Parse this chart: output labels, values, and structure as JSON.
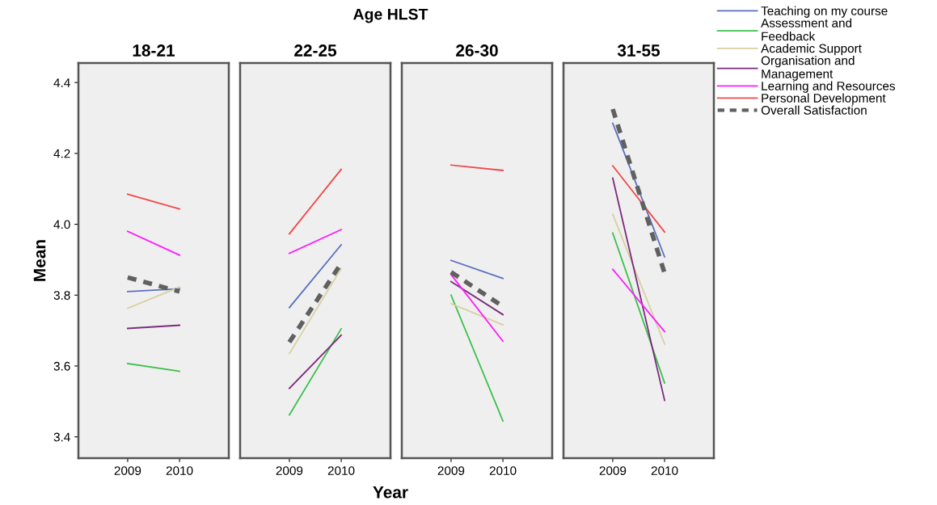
{
  "chart_data": [
    {
      "type": "line",
      "title": "18-21",
      "ylabel": "Mean",
      "categories": [
        "2009",
        "2010"
      ],
      "ylim": [
        3.34,
        4.455
      ],
      "yticks": [
        3.4,
        3.6,
        3.8,
        {
          "value": 4.0,
          "label": "4.0"
        },
        4.2,
        4.4
      ],
      "legend": "top right",
      "series": [
        {
          "name": "Teaching on my course",
          "color": "#5a6fc0",
          "values": [
            3.81,
            3.818
          ]
        },
        {
          "name": "Assessment and\nFeedback",
          "color": "#3cc04c",
          "values": [
            3.607,
            3.585
          ]
        },
        {
          "name": "Academic Support",
          "color": "#d8d0a0",
          "values": [
            3.763,
            3.823
          ]
        },
        {
          "name": "Organisation and\nManagement",
          "color": "#7c2a7c",
          "values": [
            3.706,
            3.715
          ]
        },
        {
          "name": "Learning and Resources",
          "color": "#ff1aff",
          "values": [
            3.98,
            3.913
          ]
        },
        {
          "name": "Personal Development",
          "color": "#f04848",
          "values": [
            4.085,
            4.043
          ]
        },
        {
          "name": "Overall Satisfaction",
          "color": "#606060",
          "line_style": "dashed",
          "values": [
            3.85,
            3.81
          ]
        }
      ]
    },
    {
      "type": "line",
      "title": "22-25",
      "annotations": [
        "Age HLST"
      ],
      "xlabel": "Year",
      "categories": [
        "2009",
        "2010"
      ],
      "ylim": [
        3.34,
        4.455
      ],
      "yticks": [
        3.4,
        3.6,
        3.8,
        4.0,
        4.2,
        4.4
      ],
      "tick_labels": "x",
      "series": [
        {
          "color": "#5a6fc0",
          "values": [
            3.765,
            3.942
          ]
        },
        {
          "color": "#3cc04c",
          "values": [
            3.462,
            3.705
          ]
        },
        {
          "color": "#d8d0a0",
          "values": [
            3.635,
            3.875
          ]
        },
        {
          "color": "#7c2a7c",
          "values": [
            3.537,
            3.687
          ]
        },
        {
          "color": "#ff1aff",
          "values": [
            3.918,
            3.985
          ]
        },
        {
          "color": "#f04848",
          "values": [
            3.973,
            4.155
          ]
        },
        {
          "color": "#606060",
          "line_style": "dashed",
          "values": [
            3.667,
            3.89
          ]
        }
      ]
    },
    {
      "type": "line",
      "title": "26-30",
      "categories": [
        "2009",
        "2010"
      ],
      "ylim": [
        3.34,
        4.455
      ],
      "yticks": [
        3.4,
        3.6,
        3.8,
        4.0,
        4.2,
        4.4
      ],
      "tick_labels": "x",
      "series": [
        {
          "color": "#5a6fc0",
          "values": [
            3.898,
            3.847
          ]
        },
        {
          "color": "#3cc04c",
          "values": [
            3.8,
            3.445
          ]
        },
        {
          "color": "#d8d0a0",
          "values": [
            3.776,
            3.716
          ]
        },
        {
          "color": "#7c2a7c",
          "values": [
            3.838,
            3.745
          ]
        },
        {
          "color": "#ff1aff",
          "values": [
            3.858,
            3.67
          ]
        },
        {
          "color": "#f04848",
          "values": [
            4.167,
            4.152
          ]
        },
        {
          "color": "#606060",
          "line_style": "dashed",
          "values": [
            3.865,
            3.768
          ]
        }
      ]
    },
    {
      "type": "line",
      "title": "31-55",
      "categories": [
        "2009",
        "2010"
      ],
      "ylim": [
        3.34,
        4.455
      ],
      "yticks": [
        3.4,
        3.6,
        3.8,
        4.0,
        4.2,
        4.4
      ],
      "tick_labels": "x",
      "series": [
        {
          "color": "#5a6fc0",
          "values": [
            4.285,
            3.908
          ]
        },
        {
          "color": "#3cc04c",
          "values": [
            3.975,
            3.552
          ]
        },
        {
          "color": "#d8d0a0",
          "values": [
            4.028,
            3.662
          ]
        },
        {
          "color": "#7c2a7c",
          "values": [
            4.13,
            3.503
          ]
        },
        {
          "color": "#ff1aff",
          "values": [
            3.873,
            3.697
          ]
        },
        {
          "color": "#f04848",
          "values": [
            4.165,
            3.978
          ]
        },
        {
          "color": "#606060",
          "line_style": "dashed",
          "values": [
            4.325,
            3.862
          ]
        }
      ]
    }
  ]
}
